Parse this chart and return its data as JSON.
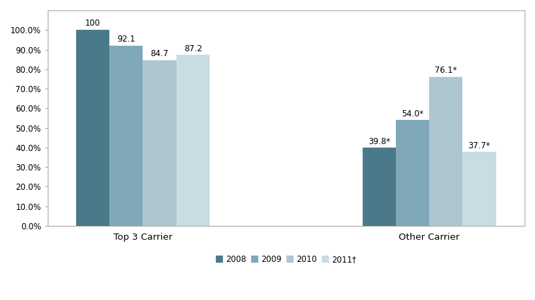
{
  "categories": [
    "Top 3 Carrier",
    "Other Carrier"
  ],
  "years": [
    "2008",
    "2009",
    "2010",
    "2011†"
  ],
  "values": {
    "Top 3 Carrier": [
      100.0,
      92.1,
      84.7,
      87.2
    ],
    "Other Carrier": [
      39.8,
      54.0,
      76.1,
      37.7
    ]
  },
  "labels": {
    "Top 3 Carrier": [
      "100",
      "92.1",
      "84.7",
      "87.2"
    ],
    "Other Carrier": [
      "39.8*",
      "54.0*",
      "76.1*",
      "37.7*"
    ]
  },
  "bar_colors": [
    "#4a7a8a",
    "#7fa8b8",
    "#adc6d0",
    "#c8dce3"
  ],
  "legend_labels": [
    "2008",
    "2009",
    "2010",
    "2011†"
  ],
  "ylim": [
    0,
    110
  ],
  "yticks": [
    0,
    10,
    20,
    30,
    40,
    50,
    60,
    70,
    80,
    90,
    100
  ],
  "ytick_labels": [
    "0.0%",
    "10.0%",
    "20.0%",
    "30.0%",
    "40.0%",
    "50.0%",
    "60.0%",
    "70.0%",
    "80.0%",
    "90.0%",
    "100.0%"
  ],
  "background_color": "#ffffff",
  "label_fontsize": 8.5,
  "legend_fontsize": 8.5,
  "tick_fontsize": 8.5,
  "category_fontsize": 9.5,
  "border_color": "#aaaaaa"
}
